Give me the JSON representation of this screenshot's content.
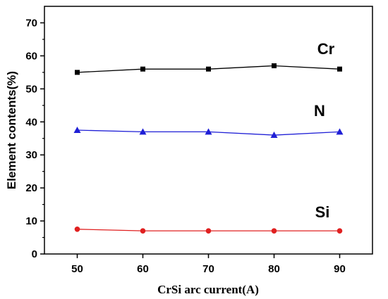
{
  "chart_data": {
    "type": "line",
    "xlabel": "CrSi arc current(A)",
    "ylabel": "Element contents(%)",
    "xlim": [
      45,
      95
    ],
    "ylim": [
      0,
      75
    ],
    "x_ticks": [
      50,
      60,
      70,
      80,
      90
    ],
    "y_ticks": [
      0,
      10,
      20,
      30,
      40,
      50,
      60,
      70
    ],
    "grid": false,
    "legend": "none",
    "x": [
      50,
      60,
      70,
      80,
      90
    ],
    "series": [
      {
        "name": "Cr",
        "values": [
          55,
          56,
          56,
          57,
          56
        ],
        "color": "#000000",
        "marker": "square"
      },
      {
        "name": "N",
        "values": [
          37.5,
          37,
          37,
          36,
          37
        ],
        "color": "#1f1fd6",
        "marker": "triangle"
      },
      {
        "name": "Si",
        "values": [
          7.5,
          7,
          7,
          7,
          7
        ],
        "color": "#e02020",
        "marker": "circle"
      }
    ]
  }
}
